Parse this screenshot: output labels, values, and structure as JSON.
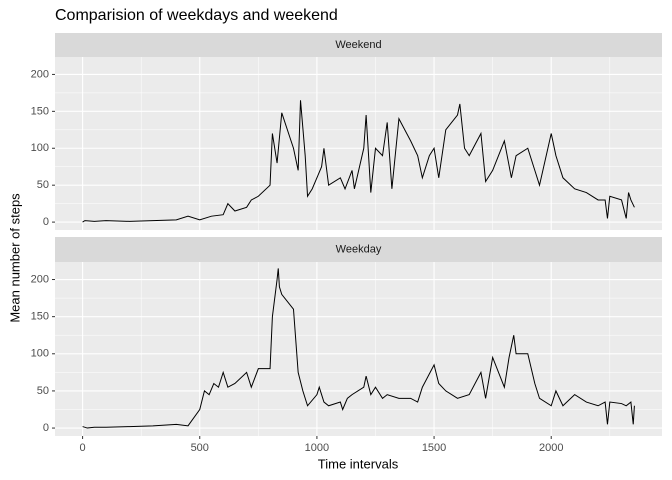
{
  "chart_data": {
    "type": "line",
    "title": "Comparision of weekdays and weekend",
    "xlabel": "Time intervals",
    "ylabel": "Mean number of steps",
    "color": "#000000",
    "xlim": [
      -117.75,
      2472.75
    ],
    "xticks": [
      0,
      500,
      1000,
      1500,
      2000
    ],
    "xminor": [
      250,
      750,
      1250,
      1750,
      2250
    ],
    "ylim": [
      -10.7,
      223.6
    ],
    "yticks": [
      0,
      50,
      100,
      150,
      200
    ],
    "yminor": [
      25,
      75,
      125,
      175
    ],
    "panels": [
      {
        "strip": "Weekend",
        "x": [
          0,
          10,
          50,
          100,
          200,
          300,
          400,
          450,
          500,
          550,
          600,
          620,
          650,
          700,
          720,
          750,
          800,
          810,
          830,
          850,
          900,
          920,
          930,
          950,
          960,
          980,
          1000,
          1020,
          1030,
          1050,
          1100,
          1120,
          1150,
          1160,
          1200,
          1210,
          1230,
          1250,
          1280,
          1300,
          1320,
          1350,
          1400,
          1430,
          1450,
          1480,
          1500,
          1520,
          1550,
          1600,
          1610,
          1630,
          1650,
          1700,
          1720,
          1750,
          1800,
          1830,
          1850,
          1900,
          1930,
          1950,
          2000,
          2020,
          2050,
          2100,
          2150,
          2200,
          2230,
          2240,
          2250,
          2300,
          2320,
          2330,
          2340,
          2355
        ],
        "values": [
          0,
          2,
          1,
          2,
          1,
          2,
          3,
          8,
          3,
          8,
          10,
          25,
          15,
          20,
          30,
          35,
          50,
          120,
          80,
          148,
          100,
          70,
          165,
          90,
          35,
          45,
          60,
          75,
          100,
          50,
          60,
          45,
          70,
          45,
          100,
          145,
          40,
          100,
          90,
          135,
          45,
          140,
          110,
          90,
          60,
          90,
          100,
          60,
          125,
          145,
          160,
          100,
          90,
          120,
          55,
          70,
          110,
          60,
          90,
          100,
          70,
          50,
          120,
          90,
          60,
          45,
          40,
          30,
          30,
          5,
          35,
          30,
          5,
          40,
          30,
          20
        ]
      },
      {
        "strip": "Weekday",
        "x": [
          0,
          20,
          50,
          100,
          200,
          300,
          400,
          450,
          500,
          520,
          540,
          560,
          580,
          600,
          620,
          650,
          700,
          720,
          750,
          800,
          810,
          830,
          835,
          840,
          850,
          900,
          920,
          940,
          960,
          1000,
          1010,
          1030,
          1050,
          1100,
          1110,
          1130,
          1150,
          1200,
          1210,
          1230,
          1250,
          1280,
          1300,
          1350,
          1400,
          1430,
          1450,
          1500,
          1520,
          1550,
          1600,
          1650,
          1700,
          1720,
          1750,
          1800,
          1820,
          1840,
          1850,
          1900,
          1930,
          1950,
          2000,
          2020,
          2050,
          2100,
          2150,
          2200,
          2230,
          2240,
          2250,
          2300,
          2320,
          2340,
          2350,
          2355
        ],
        "values": [
          2,
          0,
          1,
          1,
          2,
          3,
          5,
          3,
          25,
          50,
          45,
          60,
          55,
          75,
          55,
          60,
          75,
          55,
          80,
          80,
          150,
          200,
          215,
          190,
          180,
          160,
          75,
          50,
          30,
          45,
          55,
          35,
          30,
          35,
          25,
          40,
          45,
          55,
          70,
          45,
          55,
          40,
          45,
          40,
          40,
          35,
          55,
          85,
          60,
          50,
          40,
          45,
          75,
          40,
          95,
          55,
          95,
          125,
          100,
          100,
          60,
          40,
          30,
          50,
          30,
          45,
          35,
          30,
          35,
          5,
          35,
          33,
          30,
          35,
          5,
          30
        ]
      }
    ]
  }
}
